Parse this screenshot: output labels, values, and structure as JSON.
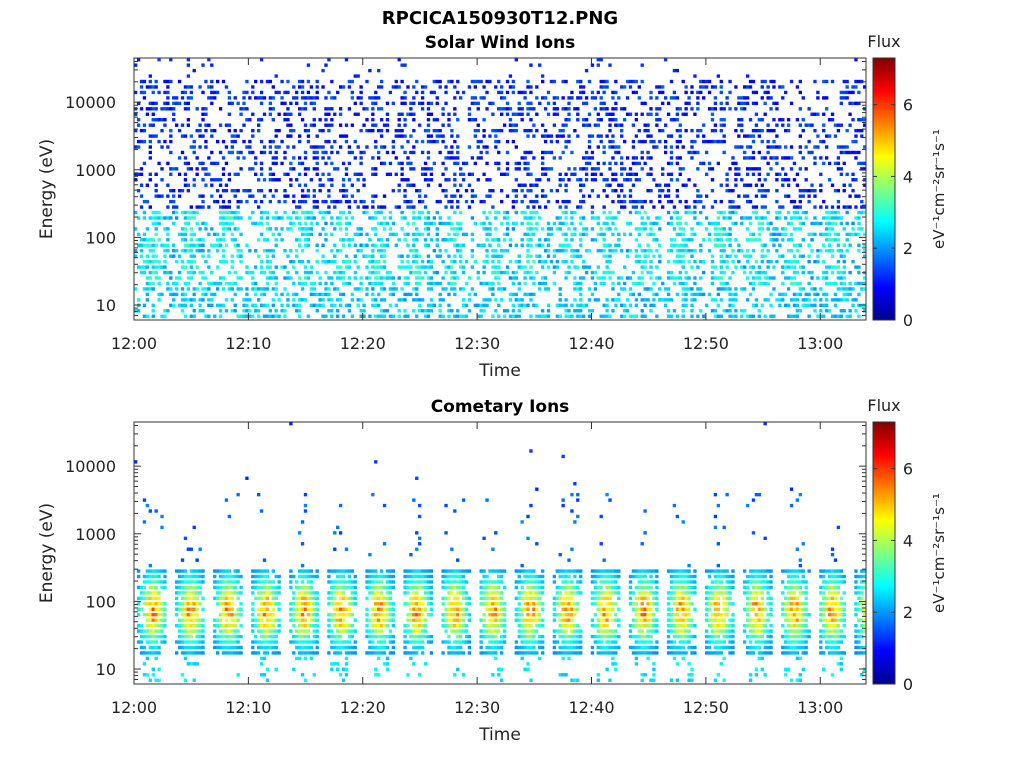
{
  "figure_title": "RPCICA150930T12.PNG",
  "chart_data": [
    {
      "type": "heatmap",
      "title": "Solar Wind Ions",
      "xlabel": "Time",
      "ylabel": "Energy (eV)",
      "x_range": [
        "12:00",
        "13:04"
      ],
      "x_ticks": [
        "12:00",
        "12:10",
        "12:20",
        "12:30",
        "12:40",
        "12:50",
        "13:00"
      ],
      "y_scale": "log",
      "y_range": [
        6,
        45000
      ],
      "y_ticks": [
        "10",
        "100",
        "1000",
        "10000"
      ],
      "colorbar": {
        "label": "Flux",
        "unit": "eV⁻¹cm⁻²sr⁻¹s⁻¹",
        "range": [
          0,
          7.3
        ],
        "ticks": [
          "0",
          "2",
          "4",
          "6"
        ],
        "colormap": "jet"
      },
      "description_values": {
        "pulse_interval_min": 3.3,
        "low_energy_flux_range": [
          2.0,
          2.8
        ],
        "high_energy_flux_range": [
          0.8,
          1.6
        ],
        "peak_energy_eV": 100
      }
    },
    {
      "type": "heatmap",
      "title": "Cometary Ions",
      "xlabel": "Time",
      "ylabel": "Energy (eV)",
      "x_range": [
        "12:00",
        "13:04"
      ],
      "x_ticks": [
        "12:00",
        "12:10",
        "12:20",
        "12:30",
        "12:40",
        "12:50",
        "13:00"
      ],
      "y_scale": "log",
      "y_range": [
        6,
        45000
      ],
      "y_ticks": [
        "10",
        "100",
        "1000",
        "10000"
      ],
      "colorbar": {
        "label": "Flux",
        "unit": "eV⁻¹cm⁻²sr⁻¹s⁻¹",
        "range": [
          0,
          7.3
        ],
        "ticks": [
          "0",
          "2",
          "4",
          "6"
        ],
        "colormap": "jet"
      },
      "description_values": {
        "pulse_interval_min": 3.3,
        "peak_energy_eV": 70,
        "peak_flux": 5.6,
        "band_energy_eV": [
          15,
          300
        ]
      }
    }
  ]
}
